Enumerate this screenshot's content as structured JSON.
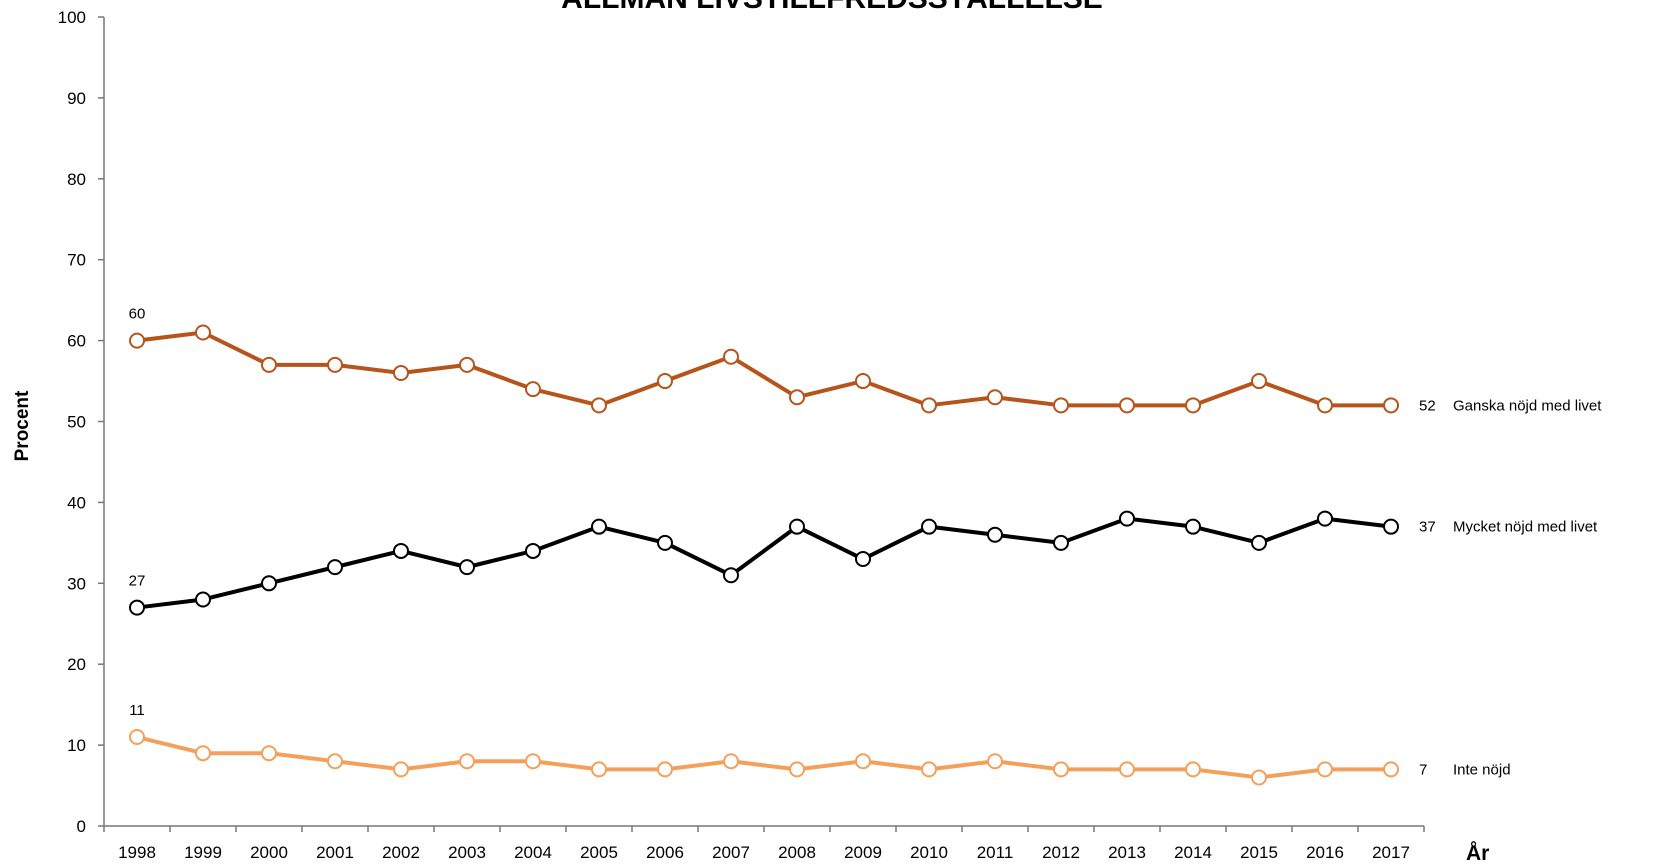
{
  "chart_data": {
    "type": "line",
    "title": "ALLMÄN LIVSTILLFREDSSTÄLLELSE",
    "y_label": "Procent",
    "x_label": "År",
    "categories": [
      "1998",
      "1999",
      "2000",
      "2001",
      "2002",
      "2003",
      "2004",
      "2005",
      "2006",
      "2007",
      "2008",
      "2009",
      "2010",
      "2011",
      "2012",
      "2013",
      "2014",
      "2015",
      "2016",
      "2017"
    ],
    "series": [
      {
        "name": "Ganska nöjd med livet",
        "color": "#b5541b",
        "values": [
          60,
          61,
          57,
          57,
          56,
          57,
          54,
          52,
          55,
          58,
          53,
          55,
          52,
          53,
          52,
          52,
          52,
          55,
          52,
          52
        ]
      },
      {
        "name": "Mycket nöjd med livet",
        "color": "#000000",
        "values": [
          27,
          28,
          30,
          32,
          34,
          32,
          34,
          37,
          35,
          31,
          37,
          33,
          37,
          36,
          35,
          38,
          37,
          35,
          38,
          37
        ]
      },
      {
        "name": "Inte nöjd",
        "color": "#f5a05a",
        "values": [
          11,
          9,
          9,
          8,
          7,
          8,
          8,
          7,
          7,
          8,
          7,
          8,
          7,
          8,
          7,
          7,
          7,
          6,
          7,
          7
        ]
      }
    ],
    "ylim": [
      0,
      100
    ],
    "yticks": [
      0,
      10,
      20,
      30,
      40,
      50,
      60,
      70,
      80,
      90,
      100
    ]
  }
}
